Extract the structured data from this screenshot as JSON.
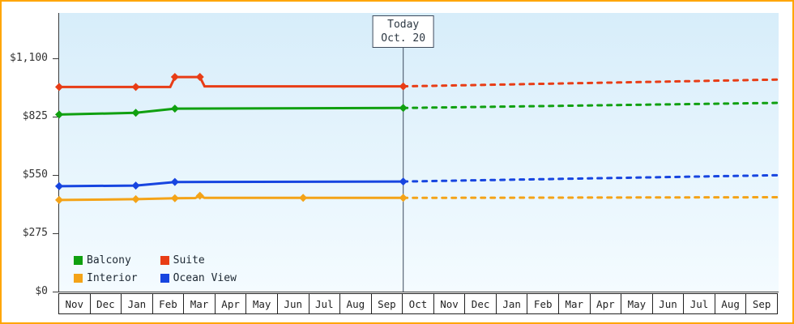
{
  "frame": {
    "border_color": "#ffa500"
  },
  "chart_data": {
    "type": "line",
    "title": "",
    "xlabel": "",
    "ylabel": "",
    "categories": [
      "Nov",
      "Dec",
      "Jan",
      "Feb",
      "Mar",
      "Apr",
      "May",
      "Jun",
      "Jul",
      "Aug",
      "Sep",
      "Oct",
      "Nov",
      "Dec",
      "Jan",
      "Feb",
      "Mar",
      "Apr",
      "May",
      "Jun",
      "Jul",
      "Aug",
      "Sep"
    ],
    "xlim_units": 23,
    "ylim": [
      0,
      1314
    ],
    "grid": false,
    "axis_color": "#3a3a3a",
    "plot_bg_gradient": [
      "#d7edfa",
      "#f4fbff"
    ],
    "legend_position": "inside-bottom-left",
    "today": {
      "index": 11,
      "label_line1": "Today",
      "label_line2": "Oct. 20",
      "line_color": "#3d4a5c"
    },
    "y_ticks": [
      {
        "value": 1100,
        "label": "$1,100"
      },
      {
        "value": 825,
        "label": "$825"
      },
      {
        "value": 550,
        "label": "$550"
      },
      {
        "value": 275,
        "label": "$275"
      },
      {
        "value": 0,
        "label": "$0"
      }
    ],
    "series": [
      {
        "name": "Balcony",
        "color": "#10a010",
        "solid_points": [
          [
            0,
            835
          ],
          [
            2.45,
            843
          ],
          [
            3.7,
            863
          ],
          [
            11,
            866
          ]
        ],
        "marker_points": [
          [
            0,
            835
          ],
          [
            2.45,
            843
          ],
          [
            3.7,
            863
          ],
          [
            11,
            866
          ]
        ],
        "forecast_dotted": [
          [
            11,
            866
          ],
          [
            23,
            890
          ]
        ]
      },
      {
        "name": "Suite",
        "color": "#e83d16",
        "solid_points": [
          [
            0,
            965
          ],
          [
            2.45,
            965
          ],
          [
            3.55,
            965
          ],
          [
            3.7,
            1012
          ],
          [
            4.5,
            1012
          ],
          [
            4.65,
            968
          ],
          [
            11,
            968
          ]
        ],
        "marker_points": [
          [
            0,
            965
          ],
          [
            2.45,
            965
          ],
          [
            3.7,
            1012
          ],
          [
            4.5,
            1012
          ],
          [
            11,
            968
          ]
        ],
        "forecast_dotted": [
          [
            11,
            968
          ],
          [
            23,
            1000
          ]
        ]
      },
      {
        "name": "Interior",
        "color": "#f4a318",
        "solid_points": [
          [
            0,
            432
          ],
          [
            2.45,
            436
          ],
          [
            3.7,
            440
          ],
          [
            4.35,
            441
          ],
          [
            4.5,
            452
          ],
          [
            4.65,
            442
          ],
          [
            7.8,
            442
          ],
          [
            11,
            442
          ]
        ],
        "marker_points": [
          [
            0,
            432
          ],
          [
            2.45,
            436
          ],
          [
            3.7,
            440
          ],
          [
            4.5,
            452
          ],
          [
            7.8,
            442
          ],
          [
            11,
            442
          ]
        ],
        "forecast_dotted": [
          [
            11,
            442
          ],
          [
            23,
            445
          ]
        ]
      },
      {
        "name": "Ocean View",
        "color": "#1745e0",
        "solid_points": [
          [
            0,
            497
          ],
          [
            2.45,
            500
          ],
          [
            3.7,
            517
          ],
          [
            11,
            519
          ]
        ],
        "marker_points": [
          [
            0,
            497
          ],
          [
            2.45,
            500
          ],
          [
            3.7,
            517
          ],
          [
            11,
            519
          ]
        ],
        "forecast_dotted": [
          [
            11,
            519
          ],
          [
            23,
            549
          ]
        ]
      }
    ]
  }
}
